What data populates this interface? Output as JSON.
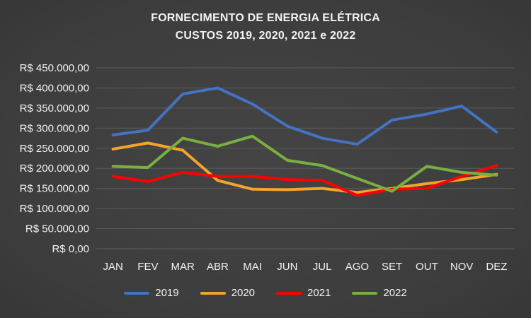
{
  "colors": {
    "background": "#3F3F3F",
    "text": "#F2F2F2",
    "gridline": "#5B5B5B"
  },
  "chart_data": {
    "type": "line",
    "title": "FORNECIMENTO DE ENERGIA ELÉTRICA",
    "subtitle": "CUSTOS 2019, 2020, 2021 e 2022",
    "categories": [
      "JAN",
      "FEV",
      "MAR",
      "ABR",
      "MAI",
      "JUN",
      "JUL",
      "AGO",
      "SET",
      "OUT",
      "NOV",
      "DEZ"
    ],
    "series": [
      {
        "name": "2019",
        "color": "#4472C4",
        "values": [
          283000,
          295000,
          385000,
          400000,
          360000,
          305000,
          275000,
          260000,
          320000,
          335000,
          355000,
          290000
        ]
      },
      {
        "name": "2020",
        "color": "#F2A42B",
        "values": [
          248000,
          263000,
          245000,
          170000,
          148000,
          147000,
          150000,
          140000,
          150000,
          162000,
          172000,
          185000
        ]
      },
      {
        "name": "2021",
        "color": "#FF0000",
        "values": [
          180000,
          167000,
          190000,
          180000,
          180000,
          172000,
          170000,
          133000,
          148000,
          150000,
          180000,
          207000
        ]
      },
      {
        "name": "2022",
        "color": "#77B041",
        "values": [
          205000,
          202000,
          275000,
          255000,
          280000,
          220000,
          207000,
          175000,
          143000,
          205000,
          190000,
          183000
        ]
      }
    ],
    "ylim": [
      0,
      450000
    ],
    "y_tick_step": 50000,
    "y_tick_labels": [
      "R$ 0,00",
      "R$ 50.000,00",
      "R$ 100.000,00",
      "R$ 150.000,00",
      "R$ 200.000,00",
      "R$ 250.000,00",
      "R$ 300.000,00",
      "R$ 350.000,00",
      "R$ 400.000,00",
      "R$ 450.000,00"
    ],
    "xlabel": "",
    "ylabel": "",
    "grid": true,
    "legend_position": "bottom"
  }
}
